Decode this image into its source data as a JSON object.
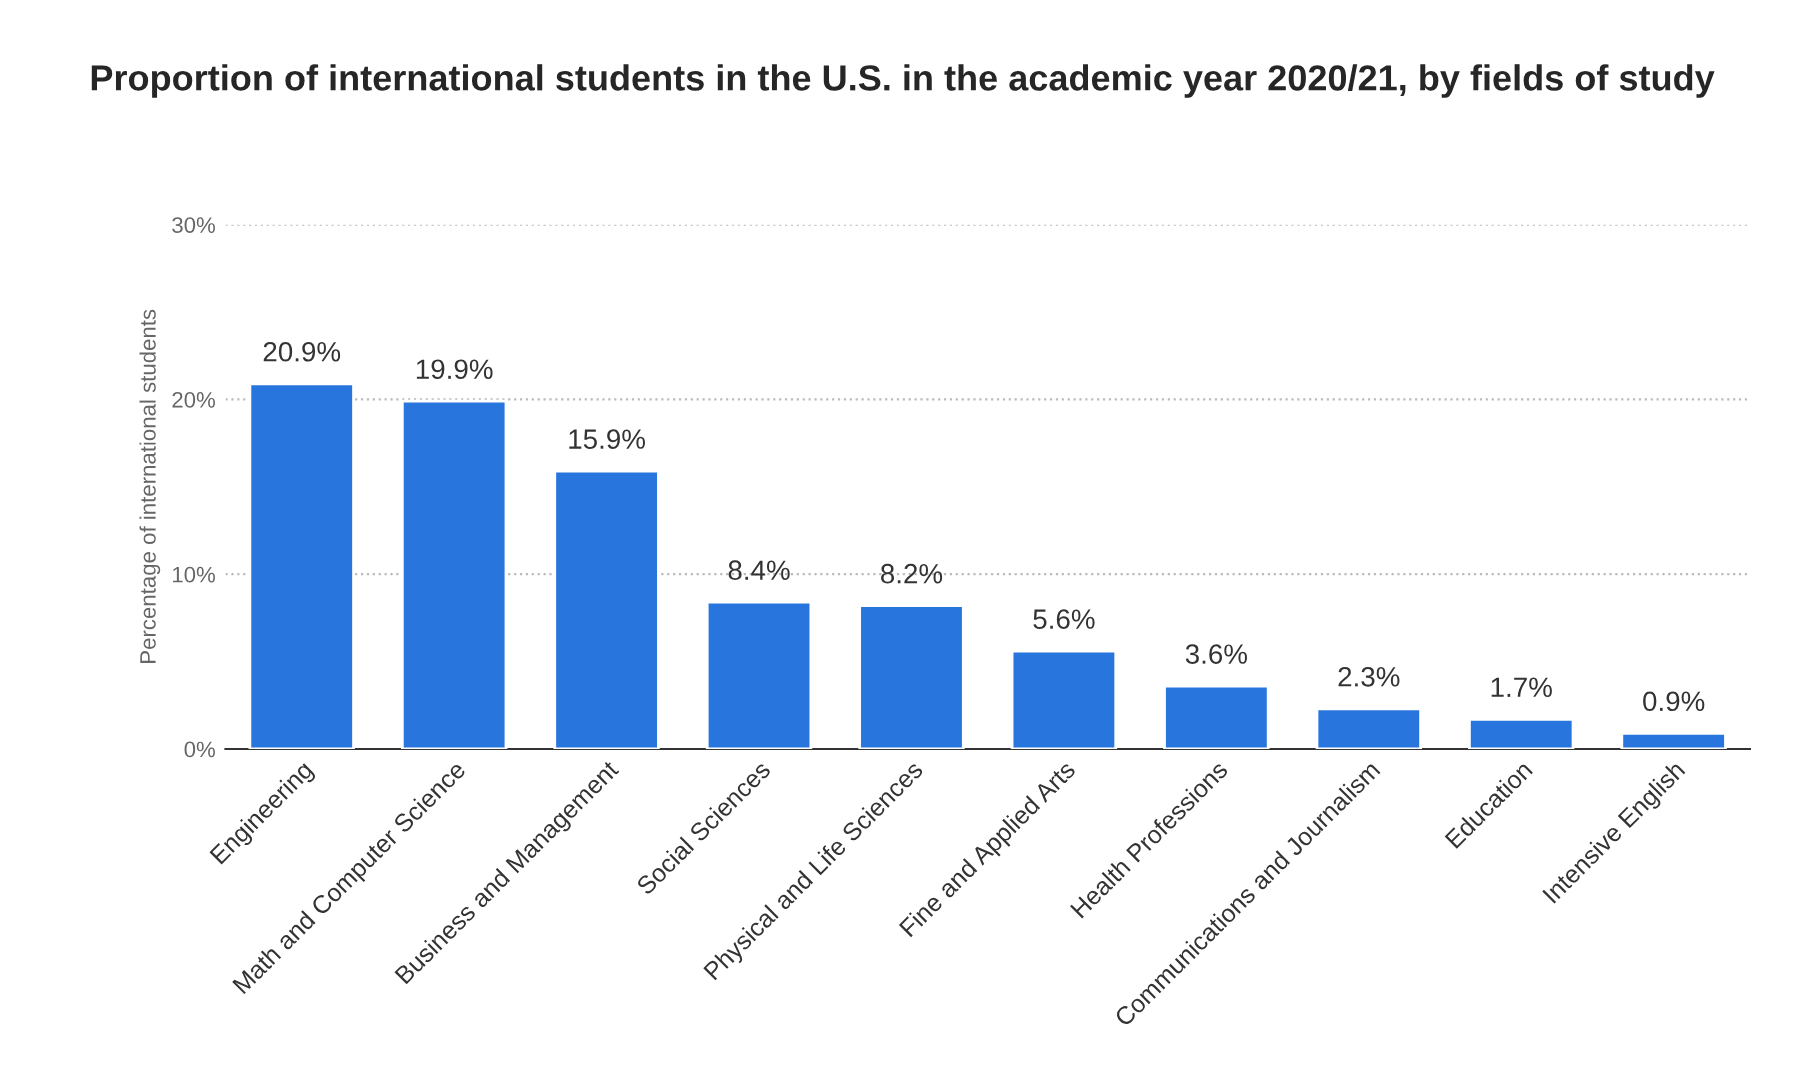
{
  "chart_data": {
    "type": "bar",
    "title": "Proportion of international students in the U.S. in the academic year 2020/21, by fields of study",
    "ylabel": "Percentage of international students",
    "categories": [
      "Engineering",
      "Math and Computer Science",
      "Business and Management",
      "Social Sciences",
      "Physical and Life Sciences",
      "Fine and Applied Arts",
      "Health Professions",
      "Communications and Journalism",
      "Education",
      "Intensive English"
    ],
    "values": [
      20.9,
      19.9,
      15.9,
      8.4,
      8.2,
      5.6,
      3.6,
      2.3,
      1.7,
      0.9
    ],
    "value_labels": [
      "20.9%",
      "19.9%",
      "15.9%",
      "8.4%",
      "8.2%",
      "5.6%",
      "3.6%",
      "2.3%",
      "1.7%",
      "0.9%"
    ],
    "color": "#2876dd",
    "ylim": [
      0,
      30
    ],
    "yticks": [
      {
        "value": 0,
        "label": "0%"
      },
      {
        "value": 10,
        "label": "10%"
      },
      {
        "value": 20,
        "label": "20%"
      },
      {
        "value": 30,
        "label": "30%"
      }
    ],
    "grid": "y",
    "legend": false
  }
}
